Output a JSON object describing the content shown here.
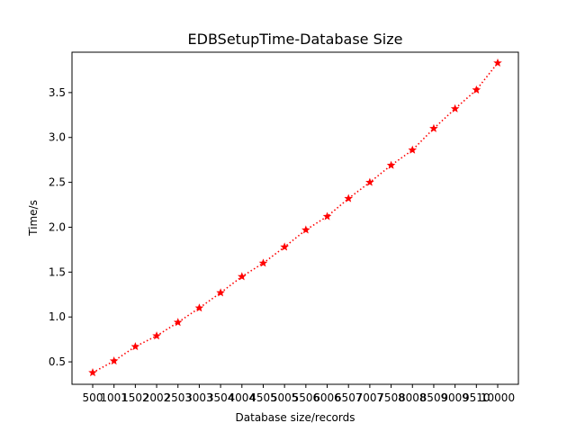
{
  "chart_data": {
    "type": "line",
    "title": "EDBSetupTime-Database Size",
    "xlabel": "Database size/records",
    "ylabel": "Time/s",
    "categories": [
      "500",
      "1001",
      "1502",
      "2002",
      "2503",
      "3003",
      "3504",
      "4004",
      "4505",
      "5005",
      "5506",
      "6006",
      "6507",
      "7007",
      "7508",
      "8008",
      "8509",
      "9009",
      "9510",
      "10000"
    ],
    "series": [
      {
        "name": "EDBSetupTime",
        "values": [
          0.38,
          0.51,
          0.67,
          0.79,
          0.94,
          1.1,
          1.27,
          1.45,
          1.6,
          1.78,
          1.97,
          2.12,
          2.32,
          2.5,
          2.69,
          2.86,
          3.1,
          3.32,
          3.53,
          3.83
        ]
      }
    ],
    "yticks": [
      0.5,
      1.0,
      1.5,
      2.0,
      2.5,
      3.0,
      3.5
    ],
    "ytick_labels": [
      "0.5",
      "1.0",
      "1.5",
      "2.0",
      "2.5",
      "3.0",
      "3.5"
    ],
    "ylim": [
      0.25,
      3.95
    ],
    "line_style": "dotted",
    "marker": "star",
    "color": "#ff0000",
    "grid": false,
    "legend": "none"
  }
}
